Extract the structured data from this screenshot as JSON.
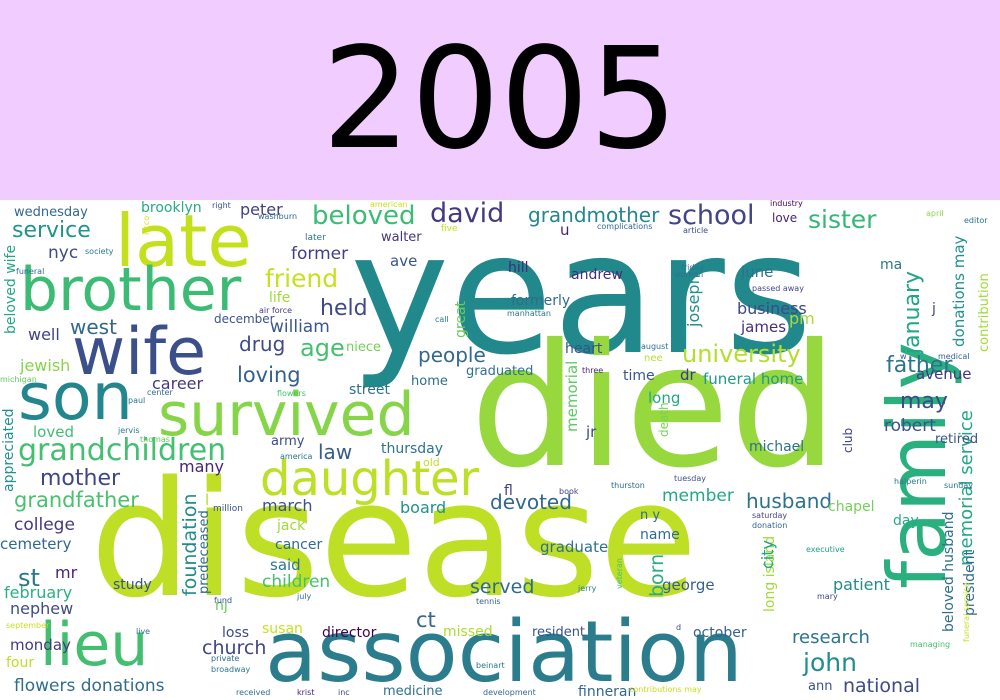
{
  "header": {
    "year": "2005",
    "background": "#f0ccff"
  },
  "cloud": {
    "background": "#ffffff",
    "words": [
      {
        "t": "years",
        "c": "#21898c"
      },
      {
        "t": "died",
        "c": "#97d83f"
      },
      {
        "t": "disease",
        "c": "#bfdf26"
      },
      {
        "t": "family",
        "c": "#2ab07f"
      },
      {
        "t": "association",
        "c": "#2b7d8e"
      },
      {
        "t": "late",
        "c": "#c4e01c"
      },
      {
        "t": "brother",
        "c": "#3cbb75"
      },
      {
        "t": "wife",
        "c": "#3b4f8a"
      },
      {
        "t": "son",
        "c": "#23868e"
      },
      {
        "t": "survived",
        "c": "#86d549"
      },
      {
        "t": "daughter",
        "c": "#bcdf27"
      },
      {
        "t": "lieu",
        "c": "#42be71"
      },
      {
        "t": "grandchildren",
        "c": "#43bf70"
      },
      {
        "t": "david",
        "c": "#443a83"
      },
      {
        "t": "school",
        "c": "#414487"
      },
      {
        "t": "sister",
        "c": "#35b779"
      },
      {
        "t": "beloved",
        "c": "#3bbc74"
      },
      {
        "t": "grandmother",
        "c": "#24878e"
      },
      {
        "t": "service",
        "c": "#20938c"
      },
      {
        "t": "friend",
        "c": "#c8e020"
      },
      {
        "t": "former",
        "c": "#433e85"
      },
      {
        "t": "held",
        "c": "#3f4889"
      },
      {
        "t": "age",
        "c": "#46c06f"
      },
      {
        "t": "william",
        "c": "#38598c"
      },
      {
        "t": "drug",
        "c": "#3e4a89"
      },
      {
        "t": "loving",
        "c": "#355f8d"
      },
      {
        "t": "people",
        "c": "#31688e"
      },
      {
        "t": "university",
        "c": "#b5de2b"
      },
      {
        "t": "father",
        "c": "#2c738e"
      },
      {
        "t": "january",
        "c": "#21a685"
      },
      {
        "t": "may",
        "c": "#3e4989"
      },
      {
        "t": "robert",
        "c": "#3b518b"
      },
      {
        "t": "law",
        "c": "#355e8d"
      },
      {
        "t": "mother",
        "c": "#404588"
      },
      {
        "t": "grandfather",
        "c": "#48c16e"
      },
      {
        "t": "west",
        "c": "#31678e"
      },
      {
        "t": "nyc",
        "c": "#3e4a89"
      },
      {
        "t": "well",
        "c": "#414287"
      },
      {
        "t": "jewish",
        "c": "#86d549"
      },
      {
        "t": "career",
        "c": "#453882"
      },
      {
        "t": "loved",
        "c": "#40bd72"
      },
      {
        "t": "many",
        "c": "#482576"
      },
      {
        "t": "college",
        "c": "#453781"
      },
      {
        "t": "cemetery",
        "c": "#31688e"
      },
      {
        "t": "st",
        "c": "#2a788e"
      },
      {
        "t": "mr",
        "c": "#482475"
      },
      {
        "t": "february",
        "c": "#2ab07f"
      },
      {
        "t": "nephew",
        "c": "#3e4c8a"
      },
      {
        "t": "monday",
        "c": "#443983"
      },
      {
        "t": "four",
        "c": "#bddf26"
      },
      {
        "t": "flowers donations",
        "c": "#2f6c8e"
      },
      {
        "t": "church",
        "c": "#404688"
      },
      {
        "t": "loss",
        "c": "#3f4889"
      },
      {
        "t": "director",
        "c": "#440154"
      },
      {
        "t": "susan",
        "c": "#c8e020"
      },
      {
        "t": "missed",
        "c": "#addc30"
      },
      {
        "t": "resident",
        "c": "#3a538b"
      },
      {
        "t": "october",
        "c": "#33638d"
      },
      {
        "t": "research",
        "c": "#2c738e"
      },
      {
        "t": "john",
        "c": "#228d8d"
      },
      {
        "t": "national",
        "c": "#3e4989"
      },
      {
        "t": "ann",
        "c": "#3b528b"
      },
      {
        "t": "served",
        "c": "#2f6b8e"
      },
      {
        "t": "devoted",
        "c": "#31688e"
      },
      {
        "t": "member",
        "c": "#22a884"
      },
      {
        "t": "husband",
        "c": "#2d718e"
      },
      {
        "t": "graduate",
        "c": "#2d718e"
      },
      {
        "t": "board",
        "c": "#21918c"
      },
      {
        "t": "march",
        "c": "#3b518b"
      },
      {
        "t": "said",
        "c": "#2a788e"
      },
      {
        "t": "children",
        "c": "#46c06f"
      },
      {
        "t": "jack",
        "c": "#9fda3a"
      },
      {
        "t": "cancer",
        "c": "#2f6c8e"
      },
      {
        "t": "study",
        "c": "#3b528b"
      },
      {
        "t": "foundation",
        "c": "#228c8d"
      },
      {
        "t": "ct",
        "c": "#31688e"
      },
      {
        "t": "george",
        "c": "#355f8d"
      },
      {
        "t": "name",
        "c": "#2f6b8e"
      },
      {
        "t": "born",
        "c": "#27ad81"
      },
      {
        "t": "patient",
        "c": "#228c8d"
      },
      {
        "t": "chapel",
        "c": "#73d056"
      },
      {
        "t": "day",
        "c": "#24aa83"
      },
      {
        "t": "beloved husband",
        "c": "#2e6f8e"
      },
      {
        "t": "memorial service",
        "c": "#22a884"
      },
      {
        "t": "president",
        "c": "#31688e"
      },
      {
        "t": "retired",
        "c": "#3b528b"
      },
      {
        "t": "avenue",
        "c": "#453781"
      },
      {
        "t": "memorial",
        "c": "#5ec962"
      },
      {
        "t": "jr",
        "c": "#3f4788"
      },
      {
        "t": "fl",
        "c": "#424086"
      },
      {
        "t": "time",
        "c": "#39568c"
      },
      {
        "t": "long",
        "c": "#22a884"
      },
      {
        "t": "dr",
        "c": "#443983"
      },
      {
        "t": "funeral home",
        "c": "#1f9a8a"
      },
      {
        "t": "michael",
        "c": "#2c728e"
      },
      {
        "t": "heart",
        "c": "#3b518b"
      },
      {
        "t": "business",
        "c": "#3e4989"
      },
      {
        "t": "james",
        "c": "#472d7b"
      },
      {
        "t": "pm",
        "c": "#a8db34"
      },
      {
        "t": "june",
        "c": "#2d718e"
      },
      {
        "t": "joseph",
        "c": "#218f8d"
      },
      {
        "t": "hill",
        "c": "#482878"
      },
      {
        "t": "andrew",
        "c": "#472c7a"
      },
      {
        "t": "u",
        "c": "#481f70"
      },
      {
        "t": "great",
        "c": "#6ccd5a"
      },
      {
        "t": "formerly",
        "c": "#2f6c8e"
      },
      {
        "t": "peter",
        "c": "#414287"
      },
      {
        "t": "brooklyn",
        "c": "#27ad81"
      },
      {
        "t": "wednesday",
        "c": "#31688e"
      },
      {
        "t": "ave",
        "c": "#3b528b"
      },
      {
        "t": "walter",
        "c": "#453781"
      },
      {
        "t": "street",
        "c": "#2c728e"
      },
      {
        "t": "niece",
        "c": "#73d056"
      },
      {
        "t": "life",
        "c": "#a0da39"
      },
      {
        "t": "december",
        "c": "#3a548c"
      },
      {
        "t": "army",
        "c": "#3e4989"
      },
      {
        "t": "thursday",
        "c": "#2b758e"
      },
      {
        "t": "home",
        "c": "#2e6d8e"
      },
      {
        "t": "graduated",
        "c": "#2c738e"
      },
      {
        "t": "death",
        "c": "#7ad151"
      },
      {
        "t": "club",
        "c": "#404588"
      },
      {
        "t": "love",
        "c": "#482475"
      },
      {
        "t": "ma",
        "c": "#2a788e"
      },
      {
        "t": "j",
        "c": "#404688"
      },
      {
        "t": "donations may",
        "c": "#21918c"
      },
      {
        "t": "contribution",
        "c": "#9fda3a"
      },
      {
        "t": "n y",
        "c": "#2e6e8e"
      },
      {
        "t": "long island",
        "c": "#a2da37"
      },
      {
        "t": "city",
        "c": "#21a685"
      },
      {
        "t": "nj",
        "c": "#65cb5e"
      },
      {
        "t": "predeceased",
        "c": "#31688e"
      },
      {
        "t": "million",
        "c": "#3b528b"
      },
      {
        "t": "l",
        "c": "#b5de2b"
      },
      {
        "t": "finneran",
        "c": "#31688e"
      },
      {
        "t": "medicine",
        "c": "#2c728e"
      },
      {
        "t": "appreciated",
        "c": "#21918c"
      },
      {
        "t": "beloved wife",
        "c": "#22a884"
      },
      {
        "t": "funeral",
        "c": "#2f6c8e"
      },
      {
        "t": "michigan",
        "c": "#65cb5e"
      },
      {
        "t": "society",
        "c": "#2a788e"
      },
      {
        "t": "right",
        "c": "#3b528b"
      },
      {
        "t": "washburn",
        "c": "#31688e"
      },
      {
        "t": "ricco",
        "c": "#d8e219"
      },
      {
        "t": "later",
        "c": "#2c728e"
      },
      {
        "t": "american",
        "c": "#c8e020"
      },
      {
        "t": "five",
        "c": "#cae11f"
      },
      {
        "t": "complications",
        "c": "#31688e"
      },
      {
        "t": "article",
        "c": "#3e4c8a"
      },
      {
        "t": "women",
        "c": "#2c728e"
      },
      {
        "t": "friday",
        "c": "#2c728e"
      },
      {
        "t": "passed away",
        "c": "#404688"
      },
      {
        "t": "industry",
        "c": "#440154"
      },
      {
        "t": "april",
        "c": "#8fd744"
      },
      {
        "t": "editor",
        "c": "#2c728e"
      },
      {
        "t": "manhattan",
        "c": "#2a788e"
      },
      {
        "t": "call",
        "c": "#2a788e"
      },
      {
        "t": "three",
        "c": "#482475"
      },
      {
        "t": "august",
        "c": "#2c728e"
      },
      {
        "t": "nee",
        "c": "#b5de2b"
      },
      {
        "t": "w",
        "c": "#3b528b"
      },
      {
        "t": "medical",
        "c": "#33638d"
      },
      {
        "t": "air force",
        "c": "#443983"
      },
      {
        "t": "flowers",
        "c": "#46c06f"
      },
      {
        "t": "center",
        "c": "#2f6c8e"
      },
      {
        "t": "paul",
        "c": "#2c728e"
      },
      {
        "t": "jervis",
        "c": "#2a788e"
      },
      {
        "t": "thomas",
        "c": "#5ec962"
      },
      {
        "t": "america",
        "c": "#2c728e"
      },
      {
        "t": "old",
        "c": "#c2df23"
      },
      {
        "t": "book",
        "c": "#404688"
      },
      {
        "t": "thurston",
        "c": "#31688e"
      },
      {
        "t": "tuesday",
        "c": "#3b528b"
      },
      {
        "t": "halperin",
        "c": "#2a788e"
      },
      {
        "t": "sunday",
        "c": "#2c728e"
      },
      {
        "t": "suite",
        "c": "#c8e020"
      },
      {
        "t": "saturday",
        "c": "#404688"
      },
      {
        "t": "donation",
        "c": "#31688e"
      },
      {
        "t": "executive",
        "c": "#1fa188"
      },
      {
        "t": "veteran",
        "c": "#46c06f"
      },
      {
        "t": "jerry",
        "c": "#2a788e"
      },
      {
        "t": "july",
        "c": "#2c728e"
      },
      {
        "t": "tennis",
        "c": "#33638d"
      },
      {
        "t": "fund",
        "c": "#3b528b"
      },
      {
        "t": "mary",
        "c": "#404688"
      },
      {
        "t": "funeral service",
        "c": "#c8e020"
      },
      {
        "t": "managing",
        "c": "#46c06f"
      },
      {
        "t": "september",
        "c": "#c8e020"
      },
      {
        "t": "live",
        "c": "#2c728e"
      },
      {
        "t": "private",
        "c": "#31688e"
      },
      {
        "t": "broadway",
        "c": "#2a788e"
      },
      {
        "t": "received",
        "c": "#2c728e"
      },
      {
        "t": "krist",
        "c": "#482475"
      },
      {
        "t": "inc",
        "c": "#404688"
      },
      {
        "t": "development",
        "c": "#31688e"
      },
      {
        "t": "contributions may",
        "c": "#c8e020"
      },
      {
        "t": "beinart",
        "c": "#2a788e"
      },
      {
        "t": "d",
        "c": "#3b528b"
      }
    ]
  }
}
